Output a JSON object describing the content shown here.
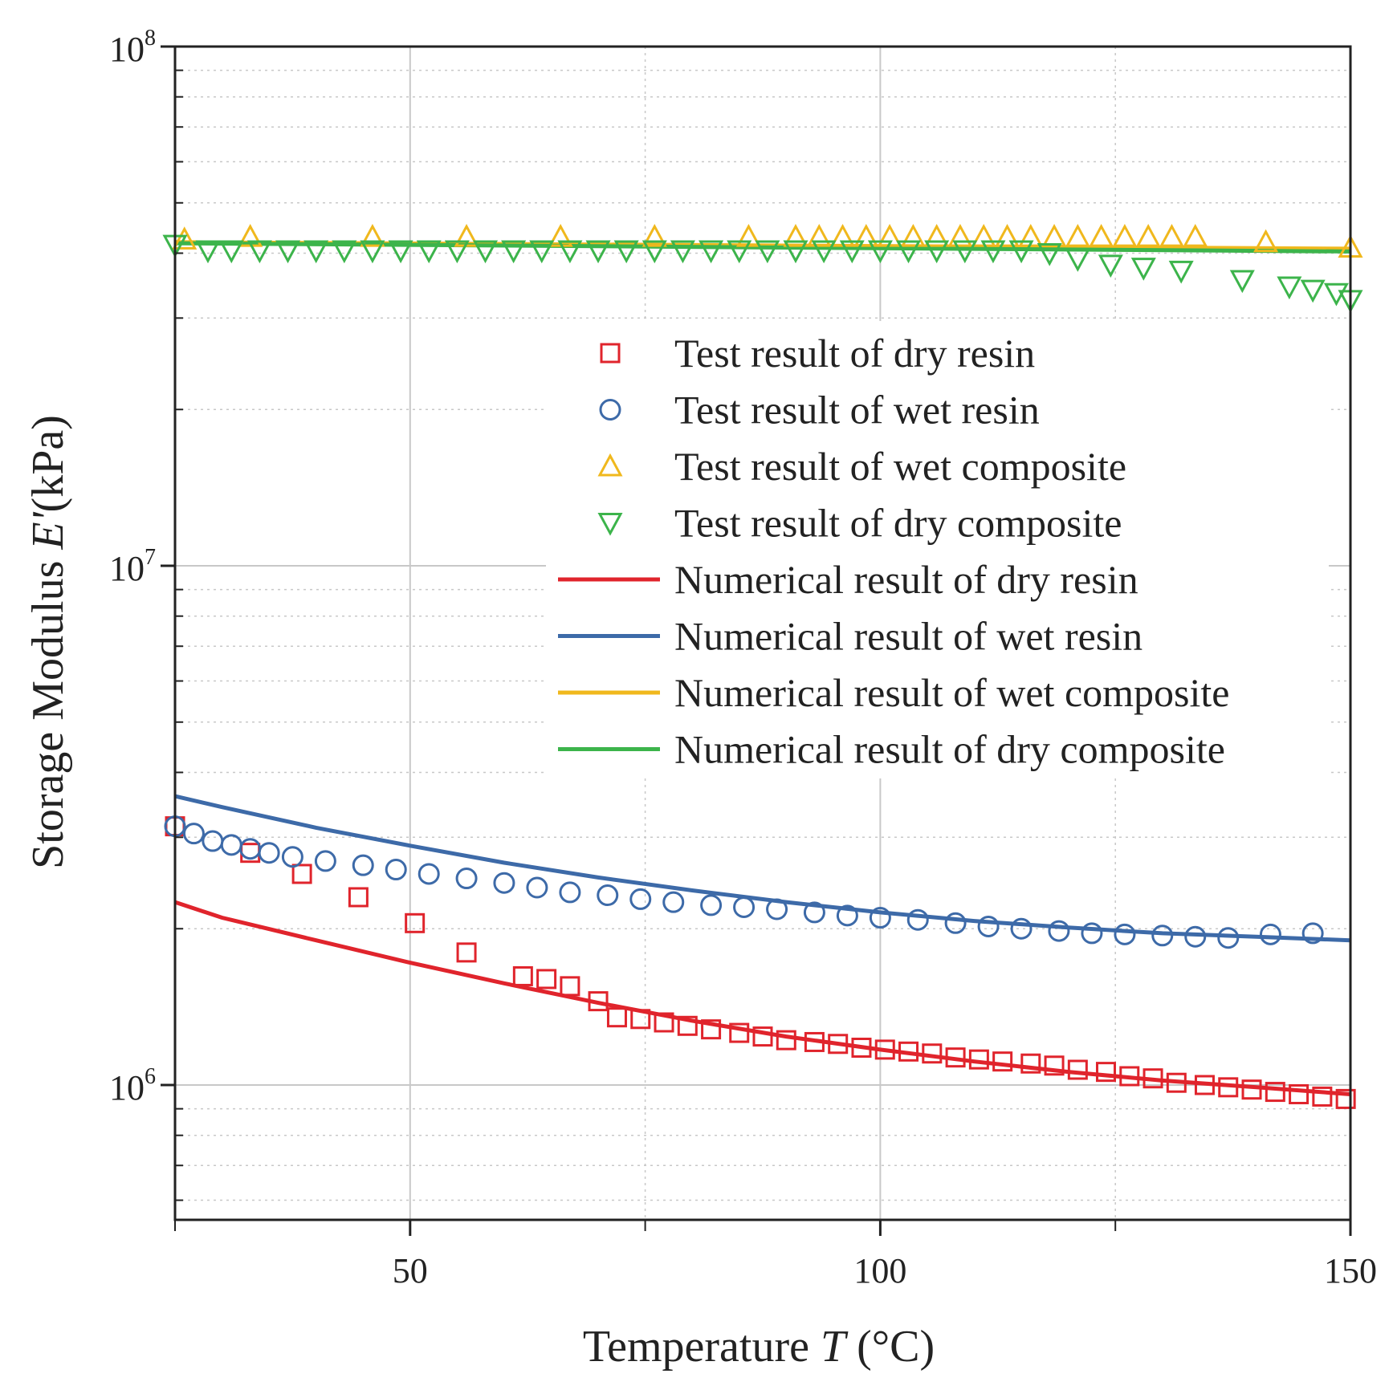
{
  "chart_data": {
    "type": "scatter",
    "title": "",
    "xlabel": {
      "prefix": "Temperature ",
      "var": "T",
      "suffix": " (°C)"
    },
    "ylabel": {
      "prefix": "Storage Modulus ",
      "var": "E'",
      "suffix": "(kPa)"
    },
    "xlim": [
      25,
      150
    ],
    "ylim": [
      550000,
      100000000
    ],
    "yscale": "log",
    "x_ticks": [
      {
        "value": 50,
        "label": "50"
      },
      {
        "value": 100,
        "label": "100"
      },
      {
        "value": 150,
        "label": "150"
      }
    ],
    "y_ticks": [
      {
        "value": 1000000,
        "base": "10",
        "exp": "6"
      },
      {
        "value": 10000000,
        "base": "10",
        "exp": "7"
      },
      {
        "value": 100000000,
        "base": "10",
        "exp": "8"
      }
    ],
    "grid": true,
    "legend_position": "center-right",
    "series": [
      {
        "name": "Test result of dry resin",
        "kind": "marker",
        "marker": "square",
        "color": "#e0242c",
        "x": [
          25,
          33,
          38.5,
          44.5,
          50.5,
          56,
          62,
          64.5,
          67,
          70,
          72,
          74.5,
          77,
          79.5,
          82,
          85,
          87.5,
          90,
          93,
          95.5,
          98,
          100.5,
          103,
          105.5,
          108,
          110.5,
          113,
          116,
          118.5,
          121,
          124,
          126.5,
          129,
          131.5,
          134.5,
          137,
          139.5,
          142,
          144.5,
          147,
          149.5
        ],
        "y": [
          3150000,
          2800000,
          2550000,
          2300000,
          2050000,
          1800000,
          1620000,
          1600000,
          1550000,
          1450000,
          1350000,
          1340000,
          1320000,
          1300000,
          1280000,
          1260000,
          1240000,
          1220000,
          1210000,
          1200000,
          1180000,
          1170000,
          1160000,
          1150000,
          1130000,
          1120000,
          1110000,
          1100000,
          1090000,
          1070000,
          1060000,
          1040000,
          1030000,
          1010000,
          1000000,
          990000,
          980000,
          970000,
          960000,
          950000,
          940000
        ]
      },
      {
        "name": "Test result of wet resin",
        "kind": "marker",
        "marker": "circle",
        "color": "#3d6aa8",
        "x": [
          25,
          27,
          29,
          31,
          33,
          35,
          37.5,
          41,
          45,
          48.5,
          52,
          56,
          60,
          63.5,
          67,
          71,
          74.5,
          78,
          82,
          85.5,
          89,
          93,
          96.5,
          100,
          104,
          108,
          111.5,
          115,
          119,
          122.5,
          126,
          130,
          133.5,
          137,
          141.5,
          146
        ],
        "y": [
          3150000,
          3050000,
          2950000,
          2900000,
          2850000,
          2800000,
          2750000,
          2700000,
          2650000,
          2600000,
          2550000,
          2500000,
          2450000,
          2400000,
          2350000,
          2320000,
          2280000,
          2250000,
          2220000,
          2200000,
          2180000,
          2150000,
          2120000,
          2100000,
          2080000,
          2050000,
          2020000,
          2000000,
          1980000,
          1960000,
          1950000,
          1940000,
          1930000,
          1920000,
          1950000,
          1960000
        ]
      },
      {
        "name": "Test result of wet composite",
        "kind": "marker",
        "marker": "triangle-up",
        "color": "#f0b81d",
        "x": [
          26,
          33,
          46,
          56,
          66,
          76,
          86,
          91,
          93.5,
          96,
          98.5,
          101,
          103.5,
          106,
          108.5,
          111,
          113.5,
          116,
          118.5,
          121,
          123.5,
          126,
          128.5,
          131,
          133.5,
          141,
          150
        ],
        "y": [
          42500000,
          43000000,
          43000000,
          43000000,
          43000000,
          43000000,
          43000000,
          43000000,
          43000000,
          43000000,
          43000000,
          43000000,
          43000000,
          43000000,
          43000000,
          43000000,
          43000000,
          43000000,
          43000000,
          43000000,
          43000000,
          43000000,
          43000000,
          43000000,
          43000000,
          42000000,
          41000000
        ],
        "note": "legend marker drawn as hollow triangle"
      },
      {
        "name": "Test result of dry composite",
        "kind": "marker",
        "marker": "triangle-down",
        "color": "#3cb44b",
        "x": [
          25,
          28.5,
          31,
          34,
          37,
          40,
          43,
          46,
          49,
          52,
          55,
          58,
          61,
          64,
          67,
          70,
          73,
          76,
          79,
          82,
          85,
          88,
          91,
          94,
          97,
          100,
          103,
          106,
          109,
          112,
          115,
          118,
          121,
          124.5,
          128,
          132,
          138.5,
          143.5,
          146,
          148.5,
          150
        ],
        "y": [
          41500000,
          40500000,
          40500000,
          40500000,
          40500000,
          40500000,
          40500000,
          40500000,
          40500000,
          40500000,
          40500000,
          40500000,
          40500000,
          40500000,
          40500000,
          40500000,
          40500000,
          40500000,
          40500000,
          40500000,
          40500000,
          40500000,
          40500000,
          40500000,
          40500000,
          40500000,
          40500000,
          40500000,
          40500000,
          40500000,
          40500000,
          40000000,
          39000000,
          38000000,
          37500000,
          37000000,
          35500000,
          34500000,
          34000000,
          33500000,
          32500000
        ]
      },
      {
        "name": "Numerical result of dry resin",
        "kind": "line",
        "color": "#e0242c",
        "x": [
          25,
          30,
          40,
          50,
          60,
          70,
          80,
          90,
          100,
          110,
          120,
          130,
          140,
          150
        ],
        "y": [
          2250000,
          2100000,
          1900000,
          1720000,
          1570000,
          1440000,
          1330000,
          1240000,
          1170000,
          1110000,
          1060000,
          1020000,
          990000,
          960000
        ]
      },
      {
        "name": "Numerical result of wet resin",
        "kind": "line",
        "color": "#3d6aa8",
        "x": [
          25,
          30,
          40,
          50,
          60,
          70,
          80,
          90,
          100,
          110,
          120,
          130,
          140,
          150
        ],
        "y": [
          3600000,
          3430000,
          3130000,
          2890000,
          2680000,
          2510000,
          2370000,
          2250000,
          2150000,
          2070000,
          2010000,
          1960000,
          1930000,
          1900000
        ]
      },
      {
        "name": "Numerical result of wet composite",
        "kind": "line",
        "color": "#f0b81d",
        "x": [
          25,
          150
        ],
        "y": [
          42000000,
          40800000
        ]
      },
      {
        "name": "Numerical result of dry composite",
        "kind": "line",
        "color": "#3cb44b",
        "x": [
          25,
          150
        ],
        "y": [
          41800000,
          40300000
        ]
      }
    ]
  }
}
